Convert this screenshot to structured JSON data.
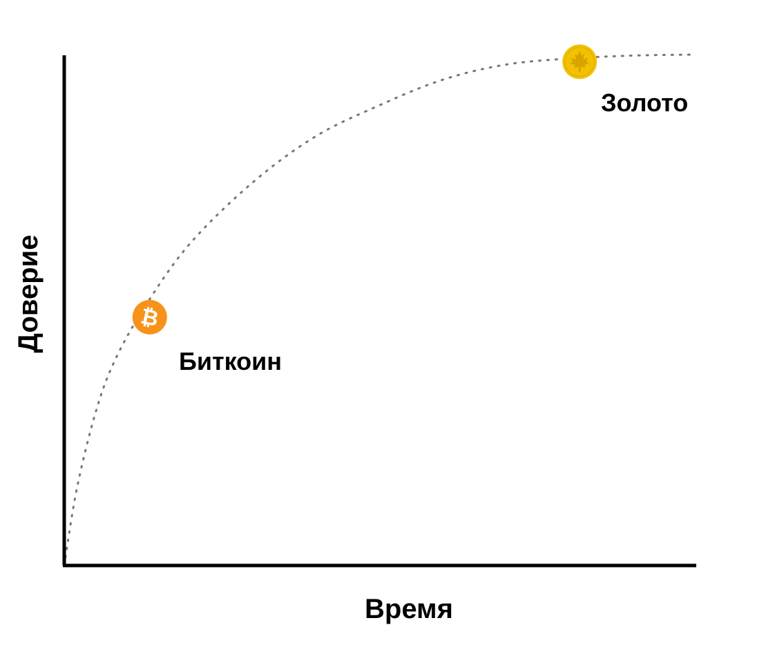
{
  "chart_data": {
    "type": "line",
    "title": "",
    "xlabel": "Время",
    "ylabel": "Доверие",
    "xlim": [
      0,
      100
    ],
    "ylim": [
      0,
      100
    ],
    "grid": false,
    "axis_ticks": false,
    "series": [
      {
        "name": "trust-curve",
        "style": "dotted",
        "x": [
          0,
          2,
          5,
          8,
          13,
          20,
          30,
          40,
          50,
          60,
          70,
          80,
          90,
          100
        ],
        "y": [
          0,
          15,
          30,
          40,
          51,
          63,
          75,
          84,
          90,
          95,
          98,
          99.2,
          99.8,
          100
        ]
      }
    ],
    "points": [
      {
        "label": "Биткоин",
        "icon": "bitcoin-coin-icon",
        "x": 13.6,
        "y": 48.6,
        "color": "#F7931A"
      },
      {
        "label": "Золото",
        "icon": "gold-maple-leaf-coin-icon",
        "x": 82.0,
        "y": 98.6,
        "color": "#F2C200"
      }
    ]
  },
  "colors": {
    "axis": "#000000",
    "curve": "#777777",
    "bitcoin": "#F7931A",
    "gold": "#F2C200",
    "gold_dark": "#D9A300"
  }
}
